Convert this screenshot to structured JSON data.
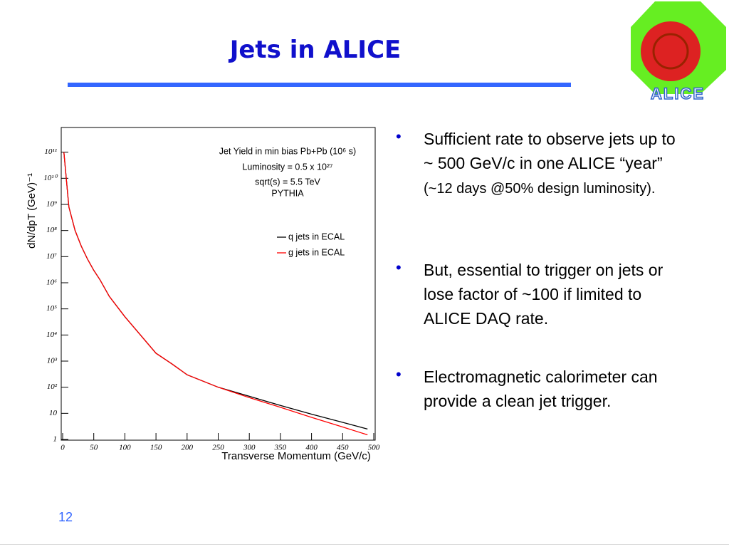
{
  "slide": {
    "title": "Jets in ALICE",
    "logo_text": "ALICE",
    "page_number": "12",
    "bullets": [
      {
        "main": " Sufficient rate to observe jets  up to ~ 500 GeV/c in one ALICE “year”",
        "note": "(~12 days @50% design luminosity)."
      },
      {
        "main": "But, essential to trigger on jets or lose factor of ~100 if limited to ALICE DAQ rate."
      },
      {
        "main": "Electromagnetic calorimeter can provide a clean jet trigger."
      }
    ]
  },
  "chart_data": {
    "type": "line",
    "annotations": [
      "Jet Yield in min bias Pb+Pb (10⁶ s)",
      "Luminosity = 0.5 x 10²⁷",
      "sqrt(s) = 5.5 TeV",
      "PYTHIA"
    ],
    "x_label": "Transverse Momentum (GeV/c)",
    "y_label": "dN/dpT  (GeV)⁻¹",
    "x": [
      2,
      10,
      20,
      30,
      40,
      50,
      60,
      75,
      100,
      125,
      150,
      175,
      200,
      250,
      300,
      350,
      400,
      450,
      490
    ],
    "series": [
      {
        "name": "q jets in ECAL",
        "color": "#000000",
        "values": [
          100000000000,
          800000000,
          100000000,
          25000000,
          8000000,
          3000000,
          1300000,
          300000,
          50000,
          10000,
          2000,
          800,
          300,
          100,
          45,
          20,
          9.3,
          4.5,
          2.5
        ]
      },
      {
        "name": "g jets in ECAL",
        "color": "#ff0000",
        "values": [
          100000000000,
          800000000,
          100000000,
          25000000,
          8000000,
          3000000,
          1300000,
          300000,
          50000,
          10000,
          2000,
          800,
          300,
          100,
          40,
          17,
          7,
          3,
          1.5
        ]
      }
    ],
    "xlim": [
      0,
      500
    ],
    "xticks": [
      0,
      50,
      100,
      150,
      200,
      250,
      300,
      350,
      400,
      450,
      500
    ],
    "ylim": [
      1,
      1000000000000
    ],
    "log_y": true,
    "yticks": [
      1,
      10,
      {
        "value": 100,
        "label": "10²"
      },
      {
        "value": 1000,
        "label": "10³"
      },
      {
        "value": 10000,
        "label": "10⁴"
      },
      {
        "value": 100000,
        "label": "10⁵"
      },
      {
        "value": 1000000,
        "label": "10⁶"
      },
      {
        "value": 10000000,
        "label": "10⁷"
      },
      {
        "value": 100000000,
        "label": "10⁸"
      },
      {
        "value": 1000000000,
        "label": "10⁹"
      },
      {
        "value": 10000000000,
        "label": "10¹⁰"
      },
      {
        "value": 100000000000,
        "label": "10¹¹"
      }
    ],
    "grid": false
  }
}
